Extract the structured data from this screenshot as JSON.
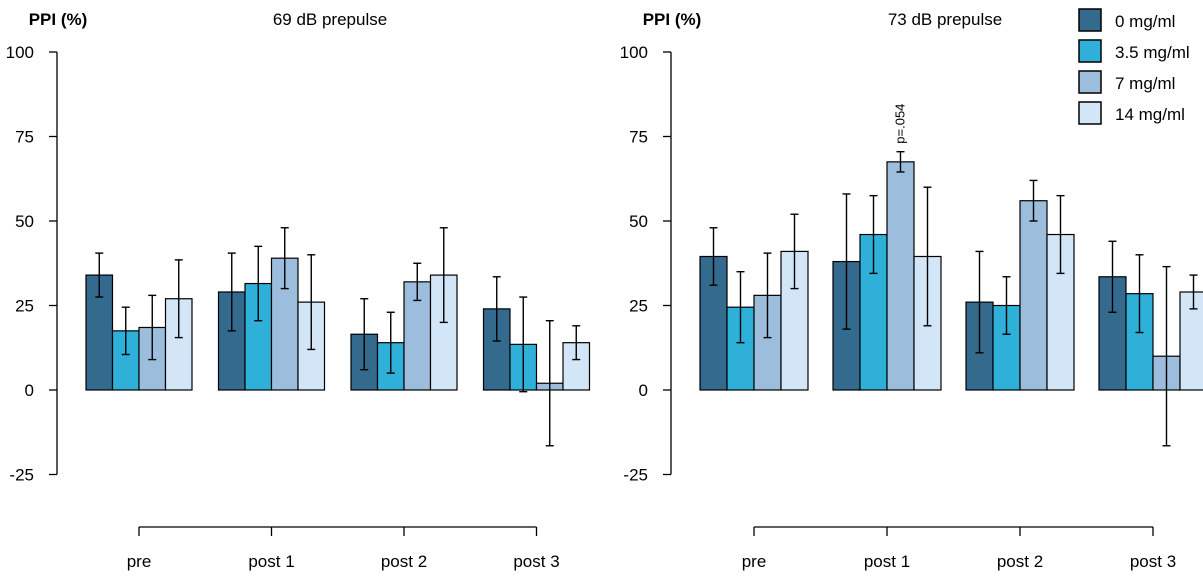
{
  "legend": {
    "position": "top-right",
    "entries": [
      {
        "label": "0 mg/ml",
        "color": "#336a8e"
      },
      {
        "label": "3.5 mg/ml",
        "color": "#2eb0d9"
      },
      {
        "label": "7 mg/ml",
        "color": "#9dbddc"
      },
      {
        "label": "14 mg/ml",
        "color": "#d3e6f7"
      }
    ]
  },
  "chart_data": [
    {
      "type": "bar",
      "title": "69 dB prepulse",
      "ylabel": "PPI (%)",
      "xlabel": "",
      "ylim": [
        -25,
        100
      ],
      "yticks": [
        -25,
        0,
        25,
        50,
        75,
        100
      ],
      "grid": false,
      "categories": [
        "pre",
        "post 1",
        "post 2",
        "post 3"
      ],
      "series": [
        {
          "name": "0 mg/ml",
          "color": "#336a8e",
          "values": [
            34,
            29,
            16.5,
            24
          ],
          "errors": [
            6.5,
            11.5,
            10.5,
            9.5
          ]
        },
        {
          "name": "3.5 mg/ml",
          "color": "#2eb0d9",
          "values": [
            17.5,
            31.5,
            14,
            13.5
          ],
          "errors": [
            7,
            11,
            9,
            14
          ]
        },
        {
          "name": "7 mg/ml",
          "color": "#9dbddc",
          "values": [
            18.5,
            39,
            32,
            2
          ],
          "errors": [
            9.5,
            9,
            5.5,
            18.5
          ]
        },
        {
          "name": "14 mg/ml",
          "color": "#d3e6f7",
          "values": [
            27,
            26,
            34,
            14
          ],
          "errors": [
            11.5,
            14,
            14,
            5
          ]
        }
      ],
      "annotations": []
    },
    {
      "type": "bar",
      "title": "73 dB prepulse",
      "ylabel": "PPI (%)",
      "xlabel": "",
      "ylim": [
        -25,
        100
      ],
      "yticks": [
        -25,
        0,
        25,
        50,
        75,
        100
      ],
      "grid": false,
      "categories": [
        "pre",
        "post 1",
        "post 2",
        "post 3"
      ],
      "series": [
        {
          "name": "0 mg/ml",
          "color": "#336a8e",
          "values": [
            39.5,
            38,
            26,
            33.5
          ],
          "errors": [
            8.5,
            20,
            15,
            10.5
          ]
        },
        {
          "name": "3.5 mg/ml",
          "color": "#2eb0d9",
          "values": [
            24.5,
            46,
            25,
            28.5
          ],
          "errors": [
            10.5,
            11.5,
            8.5,
            11.5
          ]
        },
        {
          "name": "7 mg/ml",
          "color": "#9dbddc",
          "values": [
            28,
            67.5,
            56,
            10
          ],
          "errors": [
            12.5,
            3,
            6,
            26.5
          ]
        },
        {
          "name": "14 mg/ml",
          "color": "#d3e6f7",
          "values": [
            41,
            39.5,
            46,
            29
          ],
          "errors": [
            11,
            20.5,
            11.5,
            5
          ]
        }
      ],
      "annotations": [
        {
          "text": "p=.054",
          "category": "post 1",
          "series": "7 mg/ml"
        }
      ]
    }
  ]
}
